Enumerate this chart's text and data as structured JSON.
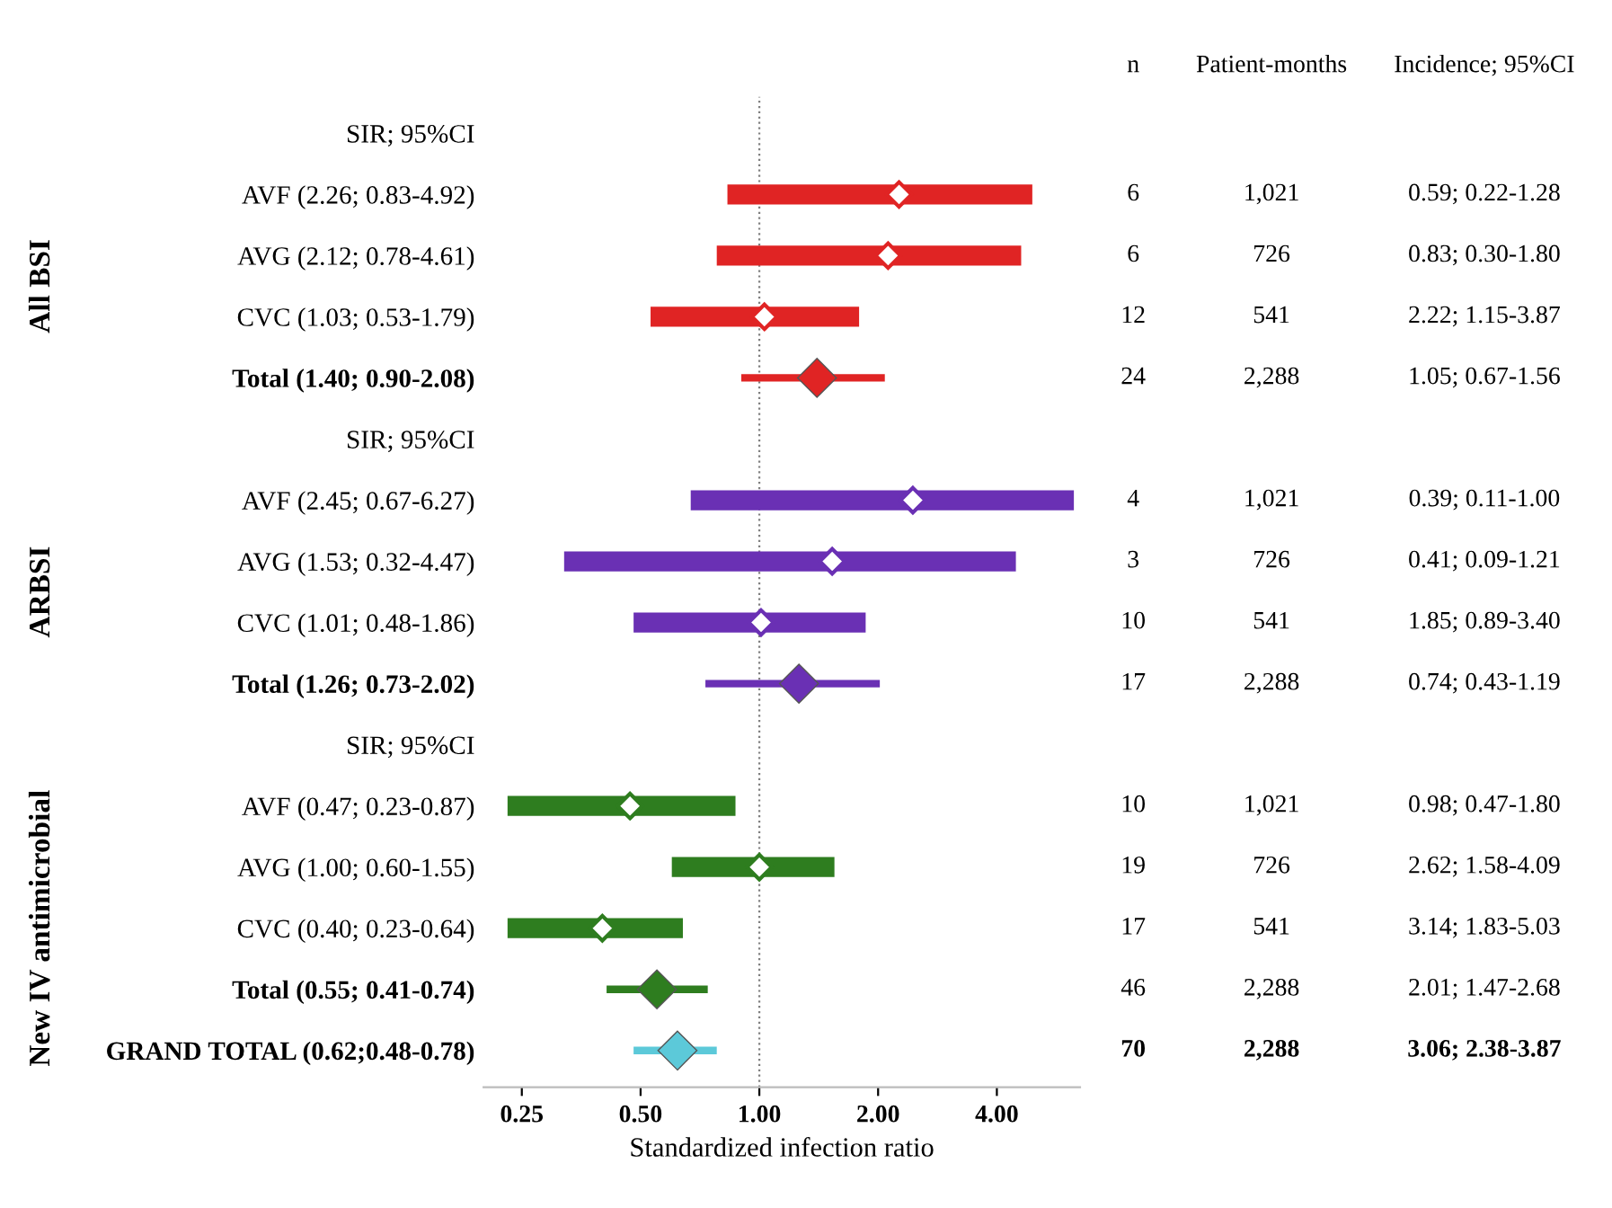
{
  "chart_data": [
    {
      "type": "scatter",
      "orientation": "horizontal",
      "xlabel": "Standardized infection ratio",
      "categories": [
        "SIR; 95%CI",
        "AVF (2.26; 0.83-4.92)",
        "AVG (2.12; 0.78-4.61)",
        "CVC (1.03; 0.53-1.79)",
        "Total (1.40; 0.90-2.08)",
        "SIR; 95%CI",
        "AVF (2.45; 0.67-6.27)",
        "AVG (1.53; 0.32-4.47)",
        "CVC (1.01; 0.48-1.86)",
        "Total (1.26; 0.73-2.02)",
        "SIR; 95%CI",
        "AVF (0.47; 0.23-0.87)",
        "AVG (1.00; 0.60-1.55)",
        "CVC (0.40; 0.23-0.64)",
        "Total (0.55; 0.41-0.74)",
        "GRAND TOTAL (0.62;0.48-0.78)"
      ],
      "log": "x",
      "xlim": [
        0.2,
        6.5
      ],
      "xticks": [
        0.25,
        {
          "value": 0.5,
          "label": "0.50"
        },
        {
          "value": 1,
          "label": "1.00"
        },
        {
          "value": 2,
          "label": "2.00"
        },
        {
          "value": 4,
          "label": "4.00"
        }
      ],
      "ref_lines": [
        {
          "axis": "x",
          "value": 1,
          "line_style": "dotted",
          "color": "#7f7f7f"
        }
      ],
      "annotations": [
        "All BSI",
        "ARBSI",
        "New IV antimicrobial"
      ],
      "series": [
        {
          "color": "#e02424",
          "marker": "diamond",
          "values": [
            null,
            2.26,
            2.12,
            1.03,
            null,
            null,
            null,
            null,
            null,
            null,
            null,
            null,
            null,
            null,
            null,
            null
          ],
          "errors": [
            null,
            [
              0.83,
              4.92
            ],
            [
              0.78,
              4.61
            ],
            [
              0.53,
              1.79
            ],
            null,
            null,
            null,
            null,
            null,
            null,
            null,
            null,
            null,
            null,
            null,
            null
          ]
        },
        {
          "color": "#e02424",
          "marker": "diamond",
          "values": [
            null,
            null,
            null,
            null,
            1.4,
            null,
            null,
            null,
            null,
            null,
            null,
            null,
            null,
            null,
            null,
            null
          ],
          "errors": [
            null,
            null,
            null,
            null,
            [
              0.9,
              2.08
            ],
            null,
            null,
            null,
            null,
            null,
            null,
            null,
            null,
            null,
            null,
            null
          ]
        },
        {
          "color": "#6a30b4",
          "marker": "diamond",
          "values": [
            null,
            null,
            null,
            null,
            null,
            null,
            2.45,
            1.53,
            1.01,
            null,
            null,
            null,
            null,
            null,
            null,
            null
          ],
          "errors": [
            null,
            null,
            null,
            null,
            null,
            null,
            [
              0.67,
              6.27
            ],
            [
              0.32,
              4.47
            ],
            [
              0.48,
              1.86
            ],
            null,
            null,
            null,
            null,
            null,
            null,
            null
          ]
        },
        {
          "color": "#6a30b4",
          "marker": "diamond",
          "values": [
            null,
            null,
            null,
            null,
            null,
            null,
            null,
            null,
            null,
            1.26,
            null,
            null,
            null,
            null,
            null,
            null
          ],
          "errors": [
            null,
            null,
            null,
            null,
            null,
            null,
            null,
            null,
            null,
            [
              0.73,
              2.02
            ],
            null,
            null,
            null,
            null,
            null,
            null
          ]
        },
        {
          "color": "#2e7d1f",
          "marker": "diamond",
          "values": [
            null,
            null,
            null,
            null,
            null,
            null,
            null,
            null,
            null,
            null,
            null,
            0.47,
            1.0,
            0.4,
            null,
            null
          ],
          "errors": [
            null,
            null,
            null,
            null,
            null,
            null,
            null,
            null,
            null,
            null,
            null,
            [
              0.23,
              0.87
            ],
            [
              0.6,
              1.55
            ],
            [
              0.23,
              0.64
            ],
            null,
            null
          ]
        },
        {
          "color": "#2e7d1f",
          "marker": "diamond",
          "values": [
            null,
            null,
            null,
            null,
            null,
            null,
            null,
            null,
            null,
            null,
            null,
            null,
            null,
            null,
            0.55,
            null
          ],
          "errors": [
            null,
            null,
            null,
            null,
            null,
            null,
            null,
            null,
            null,
            null,
            null,
            null,
            null,
            null,
            [
              0.41,
              0.74
            ],
            null
          ]
        },
        {
          "color": "#5cc9d9",
          "marker": "diamond",
          "values": [
            null,
            null,
            null,
            null,
            null,
            null,
            null,
            null,
            null,
            null,
            null,
            null,
            null,
            null,
            null,
            0.62
          ],
          "errors": [
            null,
            null,
            null,
            null,
            null,
            null,
            null,
            null,
            null,
            null,
            null,
            null,
            null,
            null,
            null,
            [
              0.48,
              0.78
            ]
          ]
        }
      ]
    },
    {
      "type": "other",
      "categories": [
        "n",
        "Patient-months",
        "Incidence; 95%CI"
      ],
      "cell_labels": [
        [
          null,
          null,
          null
        ],
        [
          "6",
          "1,021",
          "0.59; 0.22-1.28"
        ],
        [
          "6",
          "726",
          "0.83; 0.30-1.80"
        ],
        [
          "12",
          "541",
          "2.22; 1.15-3.87"
        ],
        [
          "24",
          "2,288",
          "1.05; 0.67-1.56"
        ],
        [
          null,
          null,
          null
        ],
        [
          "4",
          "1,021",
          "0.39; 0.11-1.00"
        ],
        [
          "3",
          "726",
          "0.41; 0.09-1.21"
        ],
        [
          "10",
          "541",
          "1.85; 0.89-3.40"
        ],
        [
          "17",
          "2,288",
          "0.74; 0.43-1.19"
        ],
        [
          null,
          null,
          null
        ],
        [
          "10",
          "1,021",
          "0.98; 0.47-1.80"
        ],
        [
          "19",
          "726",
          "2.62; 1.58-4.09"
        ],
        [
          "17",
          "541",
          "3.14; 1.83-5.03"
        ],
        [
          "46",
          "2,288",
          "2.01; 1.47-2.68"
        ],
        [
          "70",
          "2,288",
          "3.06; 2.38-3.87"
        ]
      ]
    }
  ]
}
